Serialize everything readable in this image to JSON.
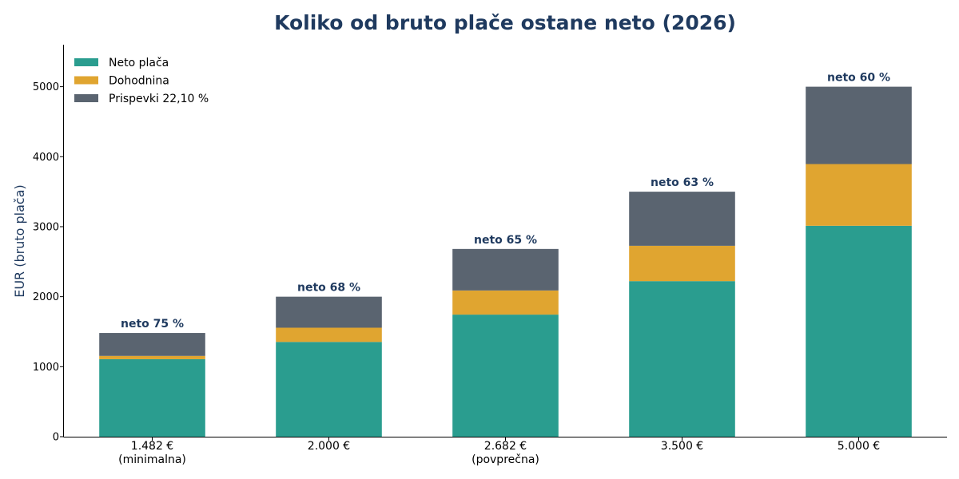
{
  "chart_data": {
    "type": "bar",
    "stacked": true,
    "title": "Koliko od bruto plače ostane neto (2026)",
    "xlabel": "",
    "ylabel": "EUR (bruto plača)",
    "ylim": [
      0,
      5600
    ],
    "yticks": [
      0,
      1000,
      2000,
      3000,
      4000,
      5000
    ],
    "categories": [
      [
        "1.482 €",
        "(minimalna)"
      ],
      [
        "2.000 €"
      ],
      [
        "2.682 €",
        "(povprečna)"
      ],
      [
        "3.500 €"
      ],
      [
        "5.000 €"
      ]
    ],
    "series": [
      {
        "name": "Neto plača",
        "color": "#2a9d8f",
        "values": [
          1107,
          1354,
          1744,
          2222,
          3013
        ]
      },
      {
        "name": "Dohodnina",
        "color": "#e0a530",
        "values": [
          47,
          203,
          345,
          505,
          882
        ]
      },
      {
        "name": "Prispevki 22,10 %",
        "color": "#5a6470",
        "values": [
          328,
          443,
          593,
          773,
          1105
        ]
      }
    ],
    "totals": [
      1482,
      2000,
      2682,
      3500,
      5000
    ],
    "data_labels": [
      "neto 75 %",
      "neto 68 %",
      "neto 65 %",
      "neto 63 %",
      "neto 60 %"
    ],
    "legend_position": "top-left",
    "grid": false
  }
}
